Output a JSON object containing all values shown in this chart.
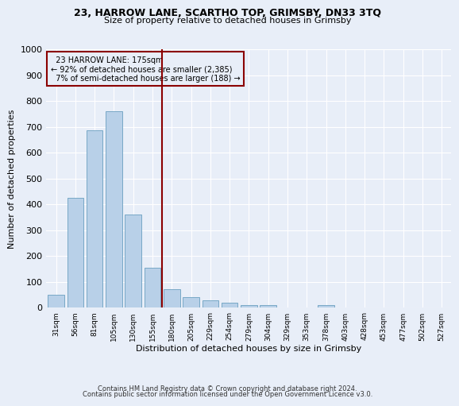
{
  "title_line1": "23, HARROW LANE, SCARTHO TOP, GRIMSBY, DN33 3TQ",
  "title_line2": "Size of property relative to detached houses in Grimsby",
  "xlabel": "Distribution of detached houses by size in Grimsby",
  "ylabel": "Number of detached properties",
  "footer_line1": "Contains HM Land Registry data © Crown copyright and database right 2024.",
  "footer_line2": "Contains public sector information licensed under the Open Government Licence v3.0.",
  "categories": [
    "31sqm",
    "56sqm",
    "81sqm",
    "105sqm",
    "130sqm",
    "155sqm",
    "180sqm",
    "205sqm",
    "229sqm",
    "254sqm",
    "279sqm",
    "304sqm",
    "329sqm",
    "353sqm",
    "378sqm",
    "403sqm",
    "428sqm",
    "453sqm",
    "477sqm",
    "502sqm",
    "527sqm"
  ],
  "values": [
    50,
    425,
    685,
    760,
    360,
    155,
    70,
    40,
    27,
    17,
    10,
    8,
    0,
    0,
    10,
    0,
    0,
    0,
    0,
    0,
    0
  ],
  "bar_color": "#b8d0e8",
  "bar_edge_color": "#6a9fc0",
  "ylim": [
    0,
    1000
  ],
  "yticks": [
    0,
    100,
    200,
    300,
    400,
    500,
    600,
    700,
    800,
    900,
    1000
  ],
  "vline_x": 5.5,
  "vline_color": "#8b0000",
  "annotation_text": "  23 HARROW LANE: 175sqm\n← 92% of detached houses are smaller (2,385)\n  7% of semi-detached houses are larger (188) →",
  "annotation_box_color": "#8b0000",
  "bg_color": "#e8eef8",
  "grid_color": "#ffffff",
  "title1_fontsize": 9,
  "title2_fontsize": 8,
  "footer_fontsize": 6,
  "ylabel_fontsize": 8,
  "xlabel_fontsize": 8,
  "ytick_fontsize": 8,
  "xtick_fontsize": 6.5
}
